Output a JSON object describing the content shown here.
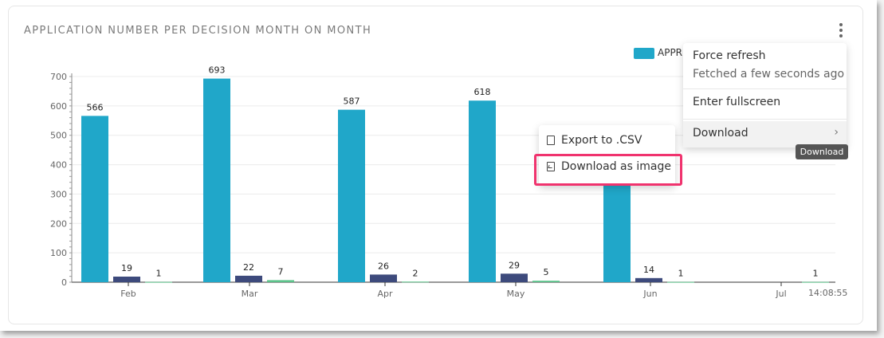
{
  "card": {
    "title": "APPLICATION NUMBER PER DECISION MONTH ON MONTH",
    "menu_icon": "kebab-icon"
  },
  "legend": {
    "label": "APPR",
    "color": "#20a7c9"
  },
  "timestamp": "14:08:55",
  "chart_data": {
    "type": "bar",
    "categories": [
      "Feb",
      "Mar",
      "Apr",
      "May",
      "Jun",
      "Jul"
    ],
    "ylim": [
      0,
      700
    ],
    "yticks": [
      0,
      100,
      200,
      300,
      400,
      500,
      600,
      700
    ],
    "series": [
      {
        "name": "APPR",
        "color": "#20a7c9",
        "values": [
          566,
          693,
          587,
          618,
          345,
          null
        ],
        "labels": [
          "566",
          "693",
          "587",
          "618",
          "",
          ""
        ]
      },
      {
        "color": "#3d4a7c",
        "values": [
          19,
          22,
          26,
          29,
          14,
          null
        ],
        "labels": [
          "19",
          "22",
          "26",
          "29",
          "14",
          ""
        ]
      },
      {
        "color": "#5cc28a",
        "values": [
          1,
          7,
          2,
          5,
          1,
          1
        ],
        "labels": [
          "1",
          "7",
          "2",
          "5",
          "1",
          "1"
        ]
      }
    ]
  },
  "main_menu": {
    "force_refresh": "Force refresh",
    "fetched": "Fetched a few seconds ago",
    "fullscreen": "Enter fullscreen",
    "download": "Download",
    "chevron": "›"
  },
  "tooltip": "Download",
  "download_menu": {
    "export_csv": "Export to .CSV",
    "download_image": "Download as image"
  }
}
